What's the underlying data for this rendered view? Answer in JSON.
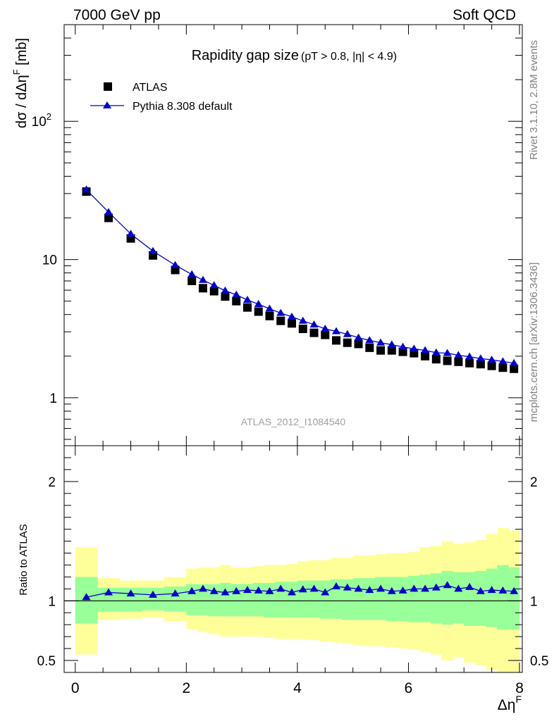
{
  "header": {
    "left": "7000 GeV pp",
    "right": "Soft QCD"
  },
  "side_labels": {
    "rivet": "Rivet 3.1.10,  2.8M events",
    "mcplots": "mcplots.cern.ch [arXiv:1306.3436]"
  },
  "chart_data": [
    {
      "type": "scatter",
      "panel": "main",
      "title": "Rapidity gap size",
      "subtitle": "(pT > 0.8, |η| < 4.9)",
      "watermark": "ATLAS_2012_I1084540",
      "ylabel": "dσ / dΔη",
      "ylabel_sup": "F",
      "ylabel_unit": " [mb]",
      "xlim": [
        -0.2,
        8.05
      ],
      "ylim": [
        0.45,
        500
      ],
      "yscale": "log",
      "y_tick_labels": [
        {
          "value": 1,
          "label": "1"
        },
        {
          "value": 10,
          "label": "10"
        },
        {
          "value": 100,
          "label": "10",
          "sup": "2"
        }
      ],
      "legend_placement": "top-left",
      "series": [
        {
          "name": "ATLAS",
          "marker": "square",
          "color": "#000000",
          "x": [
            0.2,
            0.6,
            1.0,
            1.4,
            1.8,
            2.1,
            2.3,
            2.5,
            2.7,
            2.9,
            3.1,
            3.3,
            3.5,
            3.7,
            3.9,
            4.1,
            4.3,
            4.5,
            4.7,
            4.9,
            5.1,
            5.3,
            5.5,
            5.7,
            5.9,
            6.1,
            6.3,
            6.5,
            6.7,
            6.9,
            7.1,
            7.3,
            7.5,
            7.7,
            7.9
          ],
          "y": [
            31,
            20,
            14.2,
            10.7,
            8.4,
            7.0,
            6.2,
            5.9,
            5.4,
            5.0,
            4.5,
            4.2,
            3.9,
            3.6,
            3.45,
            3.15,
            2.95,
            2.85,
            2.6,
            2.5,
            2.45,
            2.3,
            2.2,
            2.2,
            2.15,
            2.1,
            2.0,
            1.9,
            1.85,
            1.82,
            1.78,
            1.75,
            1.7,
            1.65,
            1.62
          ]
        },
        {
          "name": "Pythia 8.308 default",
          "marker": "triangle",
          "color": "#0000cc",
          "x": [
            0.2,
            0.6,
            1.0,
            1.4,
            1.8,
            2.1,
            2.3,
            2.5,
            2.7,
            2.9,
            3.1,
            3.3,
            3.5,
            3.7,
            3.9,
            4.1,
            4.3,
            4.5,
            4.7,
            4.9,
            5.1,
            5.3,
            5.5,
            5.7,
            5.9,
            6.1,
            6.3,
            6.5,
            6.7,
            6.9,
            7.1,
            7.3,
            7.5,
            7.7,
            7.9
          ],
          "y": [
            32,
            22,
            15.3,
            11.5,
            9.1,
            7.8,
            7.1,
            6.5,
            5.95,
            5.55,
            5.1,
            4.75,
            4.4,
            4.1,
            3.85,
            3.6,
            3.38,
            3.15,
            3.02,
            2.88,
            2.72,
            2.6,
            2.5,
            2.42,
            2.33,
            2.26,
            2.2,
            2.12,
            2.1,
            2.03,
            1.98,
            1.92,
            1.88,
            1.83,
            1.78
          ]
        }
      ]
    },
    {
      "type": "line",
      "panel": "ratio",
      "ylabel": "Ratio to ATLAS",
      "xlabel": "Δη",
      "xlabel_sup": "F",
      "xlim": [
        -0.2,
        8.05
      ],
      "ylim": [
        0.4,
        2.3
      ],
      "x_ticks": [
        0,
        2,
        4,
        6,
        8
      ],
      "x_tick_labels": [
        "0",
        "2",
        "4",
        "6",
        "8"
      ],
      "y_ticks": [
        0.5,
        1,
        2
      ],
      "y_tick_labels": [
        "0.5",
        "1",
        "2"
      ],
      "reference_line": 1,
      "bands": {
        "edges": [
          0,
          0.4,
          0.8,
          1.2,
          1.6,
          2.0,
          2.2,
          2.4,
          2.6,
          2.8,
          3.0,
          3.2,
          3.4,
          3.6,
          3.8,
          4.0,
          4.2,
          4.4,
          4.6,
          4.8,
          5.0,
          5.2,
          5.4,
          5.6,
          5.8,
          6.0,
          6.2,
          6.4,
          6.6,
          6.8,
          7.0,
          7.2,
          7.4,
          7.6,
          7.8,
          8.0
        ],
        "yellow_lo": [
          0.55,
          0.84,
          0.85,
          0.86,
          0.83,
          0.76,
          0.74,
          0.72,
          0.7,
          0.7,
          0.7,
          0.7,
          0.69,
          0.68,
          0.68,
          0.68,
          0.67,
          0.66,
          0.65,
          0.64,
          0.63,
          0.62,
          0.62,
          0.61,
          0.6,
          0.59,
          0.57,
          0.55,
          0.5,
          0.53,
          0.48,
          0.46,
          0.42,
          0.35,
          0.36
        ],
        "yellow_hi": [
          1.45,
          1.19,
          1.17,
          1.17,
          1.2,
          1.27,
          1.28,
          1.28,
          1.3,
          1.28,
          1.28,
          1.29,
          1.3,
          1.3,
          1.31,
          1.33,
          1.34,
          1.34,
          1.36,
          1.36,
          1.38,
          1.38,
          1.39,
          1.4,
          1.4,
          1.41,
          1.45,
          1.46,
          1.5,
          1.48,
          1.49,
          1.51,
          1.56,
          1.61,
          1.59
        ],
        "green_lo": [
          0.81,
          0.91,
          0.91,
          0.92,
          0.91,
          0.88,
          0.88,
          0.87,
          0.87,
          0.87,
          0.87,
          0.87,
          0.86,
          0.86,
          0.86,
          0.86,
          0.86,
          0.85,
          0.85,
          0.84,
          0.84,
          0.84,
          0.84,
          0.83,
          0.83,
          0.82,
          0.82,
          0.81,
          0.8,
          0.81,
          0.79,
          0.79,
          0.78,
          0.76,
          0.76
        ],
        "green_hi": [
          1.2,
          1.11,
          1.11,
          1.11,
          1.12,
          1.14,
          1.14,
          1.14,
          1.15,
          1.14,
          1.14,
          1.15,
          1.15,
          1.16,
          1.16,
          1.17,
          1.17,
          1.17,
          1.18,
          1.18,
          1.19,
          1.19,
          1.2,
          1.2,
          1.2,
          1.21,
          1.22,
          1.23,
          1.25,
          1.24,
          1.24,
          1.25,
          1.27,
          1.3,
          1.28
        ]
      },
      "series": [
        {
          "name": "Pythia 8.308 default",
          "marker": "triangle",
          "color": "#0000cc",
          "x": [
            0.2,
            0.6,
            1.0,
            1.4,
            1.8,
            2.1,
            2.3,
            2.5,
            2.7,
            2.9,
            3.1,
            3.3,
            3.5,
            3.7,
            3.9,
            4.1,
            4.3,
            4.5,
            4.7,
            4.9,
            5.1,
            5.3,
            5.5,
            5.7,
            5.9,
            6.1,
            6.3,
            6.5,
            6.7,
            6.9,
            7.1,
            7.3,
            7.5,
            7.7,
            7.9
          ],
          "y": [
            1.03,
            1.07,
            1.06,
            1.05,
            1.06,
            1.08,
            1.1,
            1.08,
            1.07,
            1.08,
            1.09,
            1.085,
            1.08,
            1.1,
            1.07,
            1.095,
            1.1,
            1.07,
            1.12,
            1.11,
            1.1,
            1.09,
            1.1,
            1.08,
            1.085,
            1.1,
            1.1,
            1.11,
            1.13,
            1.1,
            1.115,
            1.08,
            1.09,
            1.085,
            1.08
          ]
        }
      ]
    }
  ]
}
